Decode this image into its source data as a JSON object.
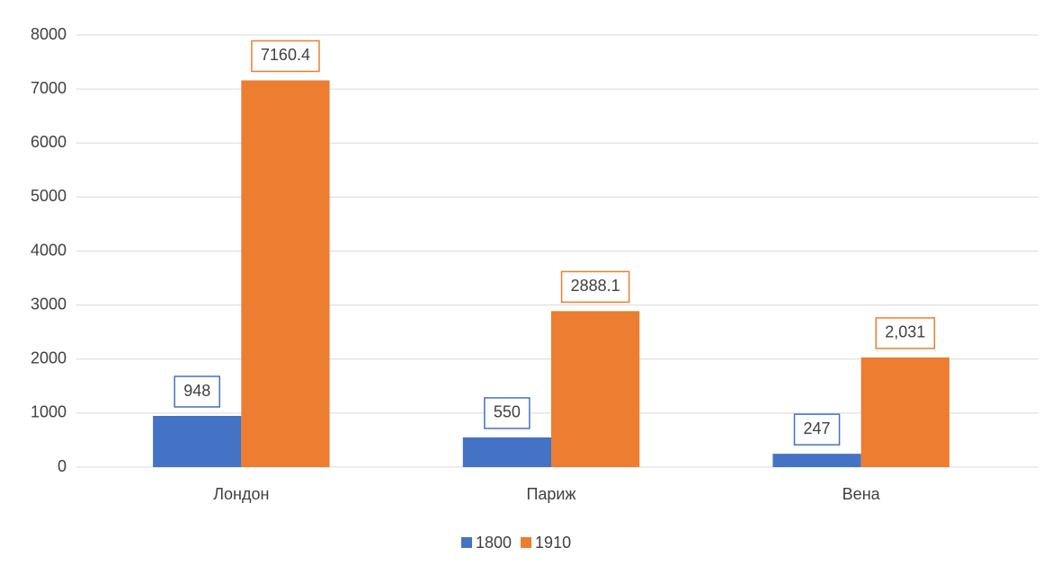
{
  "chart_data": {
    "type": "bar",
    "categories": [
      "Лондон",
      "Париж",
      "Вена"
    ],
    "series": [
      {
        "name": "1800",
        "color": "#4472c4",
        "values": [
          948,
          550,
          247
        ]
      },
      {
        "name": "1910",
        "color": "#ed7d31",
        "values": [
          7160.4,
          2888.1,
          2031
        ],
        "value_labels": [
          "7160.4",
          "2888.1",
          "2,031"
        ]
      }
    ],
    "ylim": [
      0,
      8000
    ],
    "yticks": [
      0,
      1000,
      2000,
      3000,
      4000,
      5000,
      6000,
      7000,
      8000
    ],
    "grid": true,
    "legend": "bottom"
  }
}
